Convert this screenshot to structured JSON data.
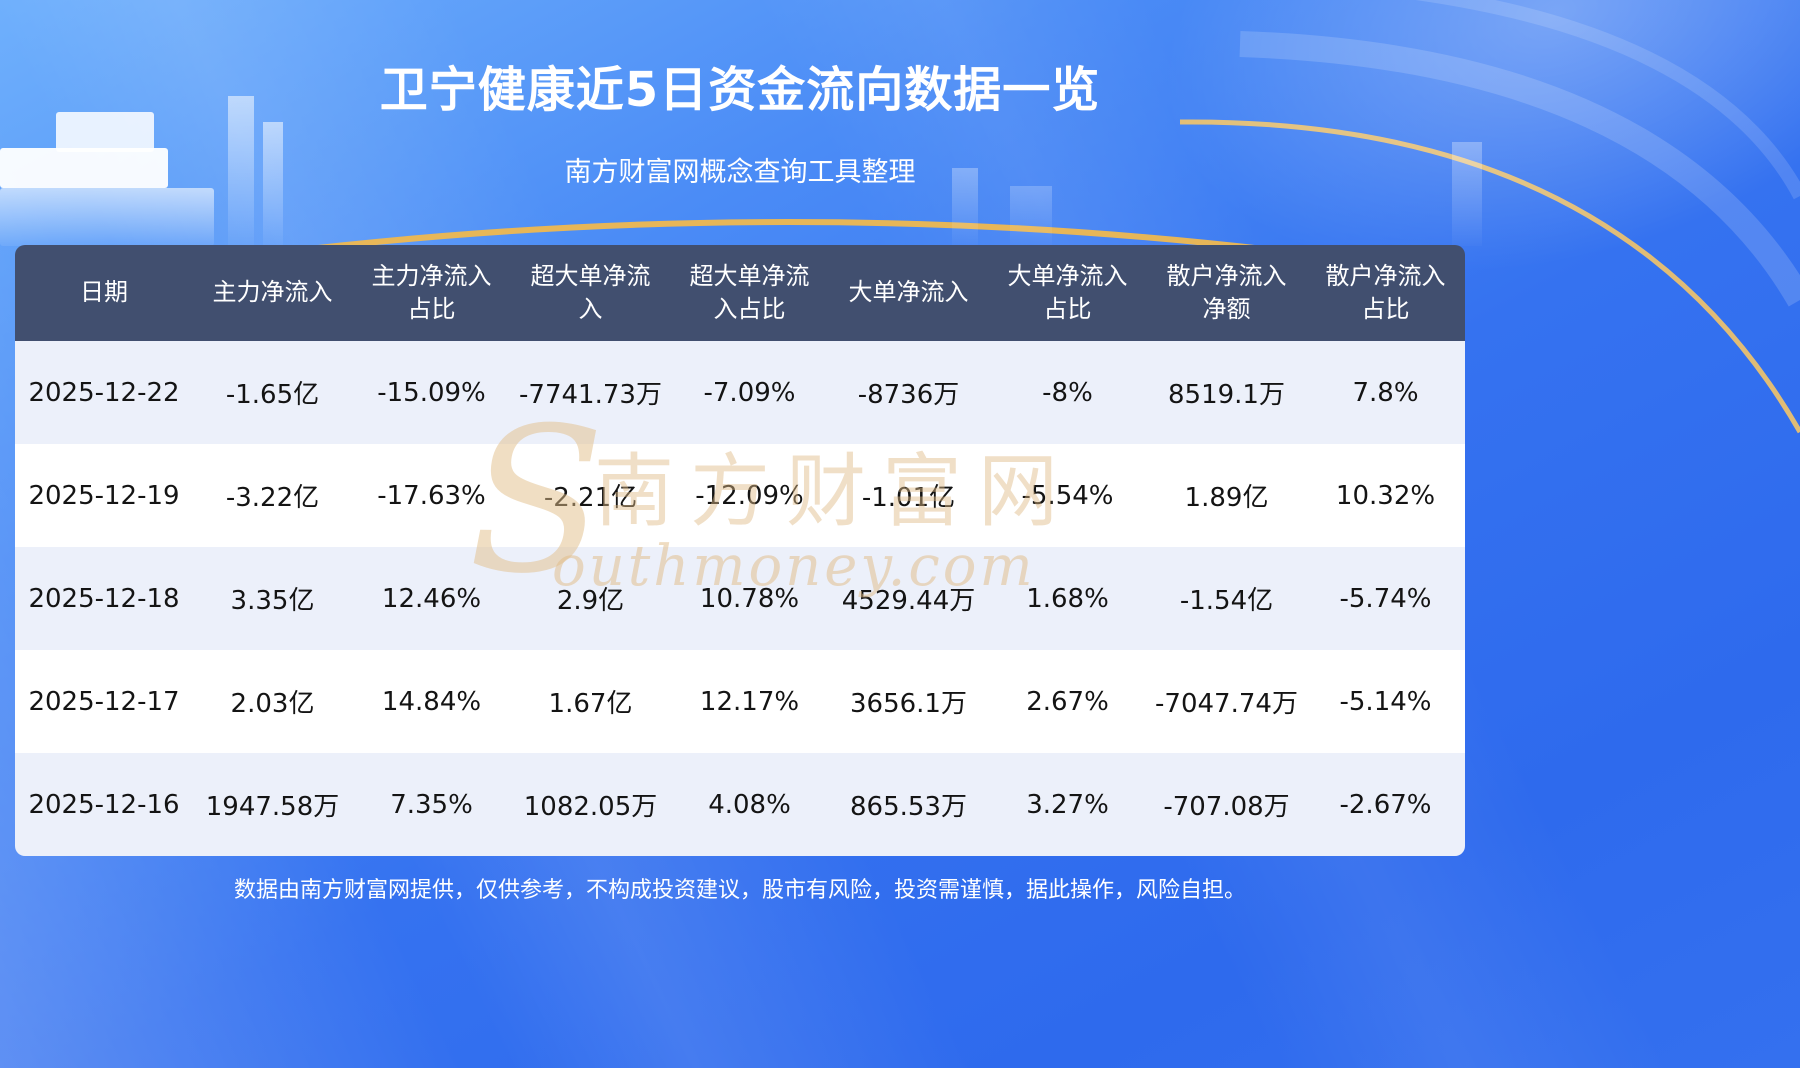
{
  "page": {
    "title": "卫宁健康近5日资金流向数据一览",
    "subtitle": "南方财富网概念查询工具整理",
    "disclaimer": "数据由南方财富网提供，仅供参考，不构成投资建议，股市有风险，投资需谨慎，据此操作，风险自担。"
  },
  "watermark": {
    "symbol": "S",
    "text_cn": "南方财富网",
    "text_en": "outhmoney.com"
  },
  "colors": {
    "background_start": "#6fb0fc",
    "background_end": "#2e6aed",
    "header_bg": "#414f6f",
    "row_light": "#ecf0fa",
    "row_white": "#ffffff",
    "gold_accent": "#efb84f",
    "title_color": "#ffffff",
    "cell_text": "#141414"
  },
  "chart_data": {
    "type": "table",
    "title": "卫宁健康近5日资金流向数据一览",
    "columns": [
      "日期",
      "主力净流入",
      "主力净流入占比",
      "超大单净流入",
      "超大单净流入占比",
      "大单净流入",
      "大单净流入占比",
      "散户净流入净额",
      "散户净流入占比"
    ],
    "rows": [
      [
        "2025-12-22",
        "-1.65亿",
        "-15.09%",
        "-7741.73万",
        "-7.09%",
        "-8736万",
        "-8%",
        "8519.1万",
        "7.8%"
      ],
      [
        "2025-12-19",
        "-3.22亿",
        "-17.63%",
        "-2.21亿",
        "-12.09%",
        "-1.01亿",
        "-5.54%",
        "1.89亿",
        "10.32%"
      ],
      [
        "2025-12-18",
        "3.35亿",
        "12.46%",
        "2.9亿",
        "10.78%",
        "4529.44万",
        "1.68%",
        "-1.54亿",
        "-5.74%"
      ],
      [
        "2025-12-17",
        "2.03亿",
        "14.84%",
        "1.67亿",
        "12.17%",
        "3656.1万",
        "2.67%",
        "-7047.74万",
        "-5.14%"
      ],
      [
        "2025-12-16",
        "1947.58万",
        "7.35%",
        "1082.05万",
        "4.08%",
        "865.53万",
        "3.27%",
        "-707.08万",
        "-2.67%"
      ]
    ]
  }
}
